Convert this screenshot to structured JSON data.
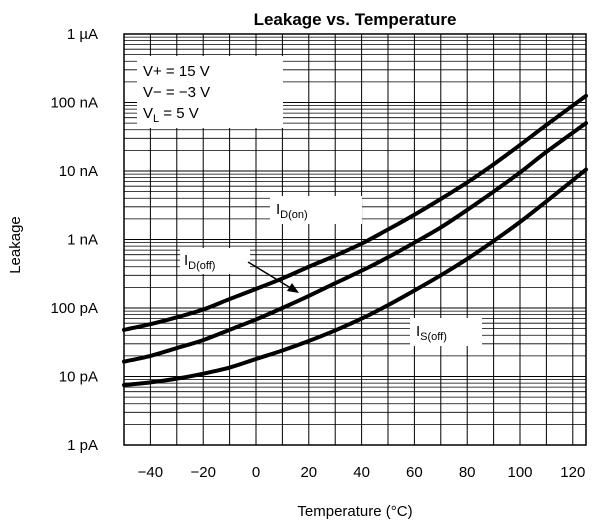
{
  "chart_data": {
    "type": "line",
    "title": "Leakage vs. Temperature",
    "xlabel": "Temperature (°C)",
    "ylabel": "Leakage",
    "x_scale": "linear",
    "y_scale": "log",
    "xlim": [
      -50,
      125
    ],
    "ylim": [
      1e-12,
      1e-06
    ],
    "grid": true,
    "x_ticks": [
      {
        "value": -40,
        "label": "−40"
      },
      {
        "value": -20,
        "label": "−20"
      },
      {
        "value": 0,
        "label": "0"
      },
      {
        "value": 20,
        "label": "20"
      },
      {
        "value": 40,
        "label": "40"
      },
      {
        "value": 60,
        "label": "60"
      },
      {
        "value": 80,
        "label": "80"
      },
      {
        "value": 100,
        "label": "100"
      },
      {
        "value": 120,
        "label": "120"
      }
    ],
    "y_ticks": [
      {
        "value": 1e-06,
        "label": "1 µA"
      },
      {
        "value": 1e-07,
        "label": "100 nA"
      },
      {
        "value": 1e-08,
        "label": "10 nA"
      },
      {
        "value": 1e-09,
        "label": "1 nA"
      },
      {
        "value": 1e-10,
        "label": "100 pA"
      },
      {
        "value": 1e-11,
        "label": "10 pA"
      },
      {
        "value": 1e-12,
        "label": "1 pA"
      }
    ],
    "conditions": [
      {
        "text": "V+ = 15 V"
      },
      {
        "text": "V− = −3 V"
      },
      {
        "main": "V",
        "sub": "L",
        "rest": " = 5 V"
      }
    ],
    "series": [
      {
        "name": "ID(on)",
        "label_main": "I",
        "label_sub": "D(on)",
        "x": [
          -50,
          -40,
          -30,
          -20,
          -10,
          0,
          10,
          20,
          30,
          40,
          50,
          60,
          70,
          80,
          90,
          100,
          110,
          125
        ],
        "y": [
          4.8e-11,
          5.8e-11,
          7.3e-11,
          9.5e-11,
          1.35e-10,
          1.9e-10,
          2.7e-10,
          4e-10,
          5.8e-10,
          8.7e-10,
          1.4e-09,
          2.3e-09,
          3.9e-09,
          6.8e-09,
          1.25e-08,
          2.4e-08,
          4.7e-08,
          1.25e-07
        ]
      },
      {
        "name": "ID(off)",
        "label_main": "I",
        "label_sub": "D(off)",
        "x": [
          -50,
          -40,
          -30,
          -20,
          -10,
          0,
          10,
          20,
          30,
          40,
          50,
          60,
          70,
          80,
          90,
          100,
          110,
          125
        ],
        "y": [
          1.65e-11,
          2e-11,
          2.6e-11,
          3.4e-11,
          4.8e-11,
          6.8e-11,
          1e-10,
          1.5e-10,
          2.3e-10,
          3.5e-10,
          5.5e-10,
          9e-10,
          1.5e-09,
          2.7e-09,
          5e-09,
          9.5e-09,
          1.9e-08,
          5e-08
        ]
      },
      {
        "name": "IS(off)",
        "label_main": "I",
        "label_sub": "S(off)",
        "x": [
          -50,
          -40,
          -30,
          -20,
          -10,
          0,
          10,
          20,
          30,
          40,
          50,
          60,
          70,
          80,
          90,
          100,
          110,
          125
        ],
        "y": [
          7.5e-12,
          8.2e-12,
          9.3e-12,
          1.1e-11,
          1.35e-11,
          1.8e-11,
          2.4e-11,
          3.3e-11,
          4.7e-11,
          7e-11,
          1.1e-10,
          1.8e-10,
          3e-10,
          5.2e-10,
          9.5e-10,
          1.8e-09,
          3.6e-09,
          1.05e-08
        ]
      }
    ]
  }
}
